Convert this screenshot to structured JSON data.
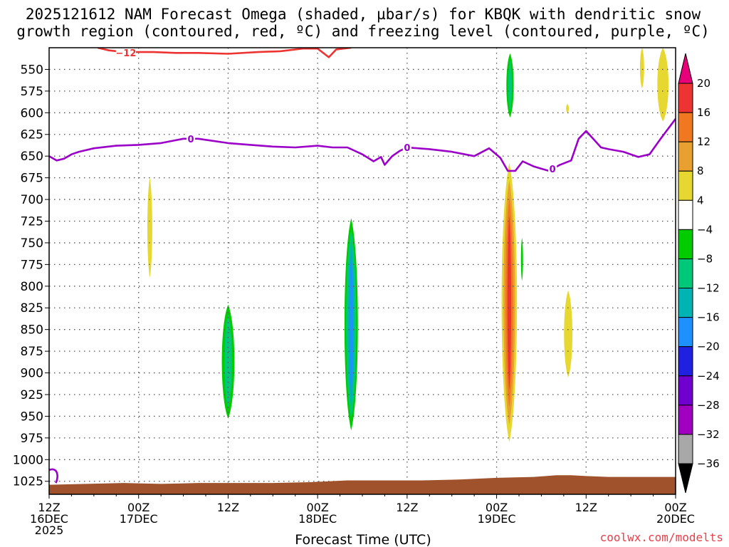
{
  "title": {
    "line1": "2025121612 NAM Forecast Omega (shaded, µbar/s) for KBQK with dendritic snow",
    "line2": "growth region (contoured, red, ºC) and freezing level (contoured, purple, ºC)"
  },
  "credit": "coolwx.com/modelts",
  "colors": {
    "background": "#ffffff",
    "grid": "#555555",
    "terrain": "#a0522d",
    "dgz_contour": "#ee3333",
    "freezing_contour": "#9a00c8"
  },
  "chart_data": {
    "type": "heatmap",
    "title": "2025121612 NAM Forecast Omega (shaded, µbar/s) for KBQK with dendritic snow growth region (contoured, red, ºC) and freezing level (contoured, purple, ºC)",
    "xlabel": "Forecast Time (UTC)",
    "ylabel": "",
    "x_unit": "hours since 2025-12-16 12Z",
    "xlim": [
      0,
      84
    ],
    "ylim_hpa": [
      525,
      1040
    ],
    "y_scale": "linear-pressure",
    "y_ticks": [
      550,
      575,
      600,
      625,
      650,
      675,
      700,
      725,
      750,
      775,
      800,
      825,
      850,
      875,
      900,
      925,
      950,
      975,
      1000,
      1025
    ],
    "x_ticks": [
      {
        "hour": 0,
        "lines": [
          "12Z",
          "16DEC",
          "2025"
        ]
      },
      {
        "hour": 12,
        "lines": [
          "00Z",
          "17DEC"
        ]
      },
      {
        "hour": 24,
        "lines": [
          "12Z"
        ]
      },
      {
        "hour": 36,
        "lines": [
          "00Z",
          "18DEC"
        ]
      },
      {
        "hour": 48,
        "lines": [
          "12Z"
        ]
      },
      {
        "hour": 60,
        "lines": [
          "00Z",
          "19DEC"
        ]
      },
      {
        "hour": 72,
        "lines": [
          "12Z"
        ]
      },
      {
        "hour": 84,
        "lines": [
          "00Z",
          "20DEC"
        ]
      }
    ],
    "grid": true,
    "colorbar": {
      "position": "right",
      "labels": [
        "20",
        "16",
        "12",
        "8",
        "4",
        "−4",
        "−8",
        "−12",
        "−16",
        "−20",
        "−24",
        "−28",
        "−32",
        "−36"
      ],
      "bins": [
        {
          "lo": 20,
          "hi": null,
          "color": "#e8007a"
        },
        {
          "lo": 16,
          "hi": 20,
          "color": "#ee3333"
        },
        {
          "lo": 12,
          "hi": 16,
          "color": "#f07820"
        },
        {
          "lo": 8,
          "hi": 12,
          "color": "#e8a030"
        },
        {
          "lo": 4,
          "hi": 8,
          "color": "#e6d830"
        },
        {
          "lo": -4,
          "hi": 4,
          "color": "#ffffff"
        },
        {
          "lo": -8,
          "hi": -4,
          "color": "#00cc00"
        },
        {
          "lo": -12,
          "hi": -8,
          "color": "#00c878"
        },
        {
          "lo": -16,
          "hi": -12,
          "color": "#00b4b4"
        },
        {
          "lo": -20,
          "hi": -16,
          "color": "#1e90ff"
        },
        {
          "lo": -24,
          "hi": -20,
          "color": "#2020e0"
        },
        {
          "lo": -28,
          "hi": -24,
          "color": "#7000d0"
        },
        {
          "lo": -32,
          "hi": -28,
          "color": "#a000c0"
        },
        {
          "lo": -36,
          "hi": -32,
          "color": "#a8a8a8"
        },
        {
          "lo": null,
          "hi": -36,
          "color": "#000000"
        }
      ]
    },
    "omega_features": [
      {
        "name": "yellow-a",
        "hour": 13.5,
        "half_width_h": 0.35,
        "p_top": 675,
        "p_bot": 790,
        "layers": [
          {
            "value": 4
          }
        ]
      },
      {
        "name": "green-a",
        "hour": 24.0,
        "half_width_h": 1.2,
        "p_top": 812,
        "p_bot": 962,
        "layers": [
          {
            "value": -4
          },
          {
            "value": -8,
            "scale": 0.75
          },
          {
            "value": -12,
            "scale": 0.45
          }
        ]
      },
      {
        "name": "green-b",
        "hour": 40.5,
        "half_width_h": 1.2,
        "p_top": 708,
        "p_bot": 980,
        "layers": [
          {
            "value": -4
          },
          {
            "value": -8,
            "scale": 0.8
          },
          {
            "value": -12,
            "scale": 0.6
          },
          {
            "value": -16,
            "scale": 0.4
          },
          {
            "value": -20,
            "scale": 0.22
          }
        ]
      },
      {
        "name": "green-top",
        "hour": 61.8,
        "half_width_h": 0.75,
        "p_top": 525,
        "p_bot": 612,
        "layers": [
          {
            "value": -4
          },
          {
            "value": -8,
            "scale": 0.7
          },
          {
            "value": -12,
            "scale": 0.35
          }
        ]
      },
      {
        "name": "yellow-main",
        "hour": 61.7,
        "half_width_h": 1.1,
        "p_top": 658,
        "p_bot": 980,
        "layers": [
          {
            "value": 4
          },
          {
            "value": 8,
            "scale": 0.75
          },
          {
            "value": 12,
            "scale": 0.5
          },
          {
            "value": 16,
            "scale": 0.25
          }
        ]
      },
      {
        "name": "green-c",
        "hour": 63.4,
        "half_width_h": 0.25,
        "p_top": 738,
        "p_bot": 800,
        "layers": [
          {
            "value": -4
          },
          {
            "value": -8,
            "scale": 0.6
          }
        ]
      },
      {
        "name": "yellow-b",
        "hour": 69.5,
        "half_width_h": 0.2,
        "p_top": 590,
        "p_bot": 600,
        "layers": [
          {
            "value": 4
          }
        ]
      },
      {
        "name": "yellow-c",
        "hour": 69.6,
        "half_width_h": 0.6,
        "p_top": 805,
        "p_bot": 905,
        "layers": [
          {
            "value": 4
          }
        ]
      },
      {
        "name": "yellow-d",
        "hour": 79.5,
        "half_width_h": 0.3,
        "p_top": 525,
        "p_bot": 572,
        "layers": [
          {
            "value": 4
          }
        ]
      },
      {
        "name": "yellow-e",
        "hour": 82.3,
        "half_width_h": 0.8,
        "p_top": 525,
        "p_bot": 610,
        "layers": [
          {
            "value": 4
          }
        ]
      }
    ],
    "freezing_level": {
      "label": "0",
      "label_hours": [
        19.0,
        48.0,
        67.5
      ],
      "x_hours": [
        0,
        1.0,
        2.0,
        3.0,
        4.0,
        6.0,
        9.0,
        12.0,
        15.0,
        18.0,
        20.0,
        24.0,
        27.0,
        30.0,
        33.0,
        36.0,
        38.0,
        40.0,
        42.0,
        43.5,
        44.5,
        45.0,
        46.0,
        47.0,
        48.0,
        51.0,
        54.0,
        57.0,
        59.0,
        60.5,
        61.5,
        62.5,
        63.5,
        65.0,
        67.0,
        68.5,
        70.0,
        71.0,
        72.0,
        74.0,
        75.0,
        77.0,
        79.0,
        80.5,
        82.0,
        84.0
      ],
      "p_hpa": [
        650,
        655,
        653,
        648,
        645,
        641,
        638,
        637,
        635,
        630,
        630,
        635,
        637,
        639,
        640,
        638,
        640,
        640,
        648,
        656,
        651,
        660,
        650,
        644,
        640,
        642,
        645,
        650,
        641,
        652,
        667,
        667,
        656,
        662,
        667,
        660,
        655,
        630,
        621,
        640,
        642,
        645,
        651,
        648,
        630,
        607
      ]
    },
    "dgz_contour": {
      "label": "−12",
      "x_hours": [
        6.5,
        8.0,
        10.0,
        12.0,
        14.0,
        17.0,
        20.0,
        24.0,
        28.0,
        31.0,
        34.0,
        36.0,
        37.5,
        38.5,
        39.5,
        40.5
      ],
      "p_hpa": [
        525,
        528,
        530,
        530,
        530,
        531,
        531,
        532,
        530,
        529,
        526,
        526,
        536,
        527,
        526,
        525
      ]
    },
    "terrain_top": {
      "x_hours": [
        0,
        5,
        10,
        15,
        20,
        25,
        30,
        35,
        40,
        45,
        50,
        55,
        60,
        65,
        68,
        70,
        72,
        75,
        78,
        80,
        82,
        84
      ],
      "p_hpa": [
        1029,
        1028,
        1027,
        1028,
        1027,
        1027,
        1027,
        1026,
        1024,
        1024,
        1024,
        1023,
        1021,
        1020,
        1018,
        1018,
        1019,
        1020,
        1020,
        1020,
        1020,
        1020
      ]
    }
  }
}
